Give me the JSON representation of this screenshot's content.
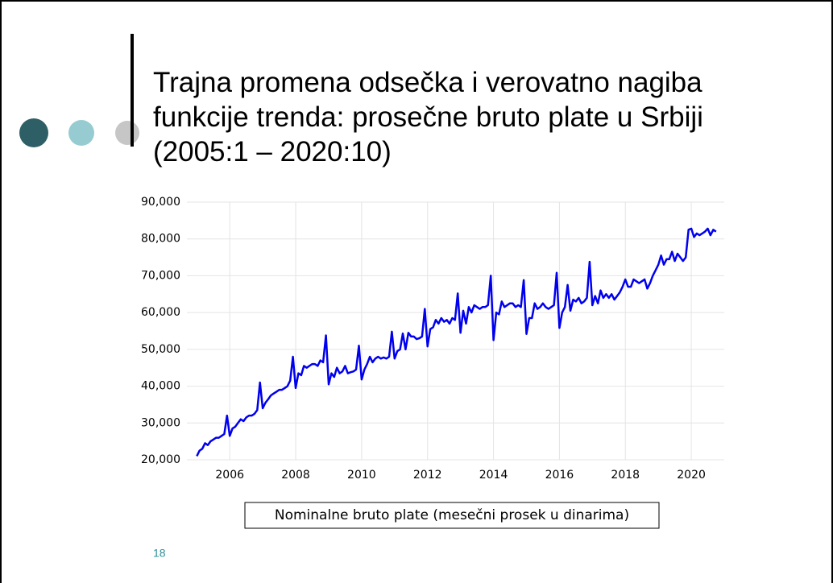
{
  "slide": {
    "title_lines": [
      "Trajna promena odsečka i verovatno nagiba",
      "funkcije trenda: prosečne bruto plate u Srbiji",
      "(2005:1 – 2020:10)"
    ],
    "page_number": "18"
  },
  "chart_data": {
    "type": "line",
    "caption": "Nominalne bruto plate (mesečni prosek u dinarima)",
    "xlim": [
      2004.7,
      2021.0
    ],
    "xticks": [
      2006,
      2008,
      2010,
      2012,
      2014,
      2016,
      2018,
      2020
    ],
    "ylim": [
      20000,
      90000
    ],
    "yticks": [
      {
        "value": 20000,
        "label": "20,000"
      },
      {
        "value": 30000,
        "label": "30,000"
      },
      {
        "value": 40000,
        "label": "40,000"
      },
      {
        "value": 50000,
        "label": "50,000"
      },
      {
        "value": 60000,
        "label": "60,000"
      },
      {
        "value": 70000,
        "label": "70,000"
      },
      {
        "value": 80000,
        "label": "80,000"
      },
      {
        "value": 90000,
        "label": "90,000"
      }
    ],
    "grid": true,
    "series": [
      {
        "color": "#0000ee",
        "x": [
          2005.0,
          2005.083,
          2005.167,
          2005.25,
          2005.333,
          2005.417,
          2005.5,
          2005.583,
          2005.667,
          2005.75,
          2005.833,
          2005.917,
          2006.0,
          2006.083,
          2006.167,
          2006.25,
          2006.333,
          2006.417,
          2006.5,
          2006.583,
          2006.667,
          2006.75,
          2006.833,
          2006.917,
          2007.0,
          2007.083,
          2007.167,
          2007.25,
          2007.333,
          2007.417,
          2007.5,
          2007.583,
          2007.667,
          2007.75,
          2007.833,
          2007.917,
          2008.0,
          2008.083,
          2008.167,
          2008.25,
          2008.333,
          2008.417,
          2008.5,
          2008.583,
          2008.667,
          2008.75,
          2008.833,
          2008.917,
          2009.0,
          2009.083,
          2009.167,
          2009.25,
          2009.333,
          2009.417,
          2009.5,
          2009.583,
          2009.667,
          2009.75,
          2009.833,
          2009.917,
          2010.0,
          2010.083,
          2010.167,
          2010.25,
          2010.333,
          2010.417,
          2010.5,
          2010.583,
          2010.667,
          2010.75,
          2010.833,
          2010.917,
          2011.0,
          2011.083,
          2011.167,
          2011.25,
          2011.333,
          2011.417,
          2011.5,
          2011.583,
          2011.667,
          2011.75,
          2011.833,
          2011.917,
          2012.0,
          2012.083,
          2012.167,
          2012.25,
          2012.333,
          2012.417,
          2012.5,
          2012.583,
          2012.667,
          2012.75,
          2012.833,
          2012.917,
          2013.0,
          2013.083,
          2013.167,
          2013.25,
          2013.333,
          2013.417,
          2013.5,
          2013.583,
          2013.667,
          2013.75,
          2013.833,
          2013.917,
          2014.0,
          2014.083,
          2014.167,
          2014.25,
          2014.333,
          2014.417,
          2014.5,
          2014.583,
          2014.667,
          2014.75,
          2014.833,
          2014.917,
          2015.0,
          2015.083,
          2015.167,
          2015.25,
          2015.333,
          2015.417,
          2015.5,
          2015.583,
          2015.667,
          2015.75,
          2015.833,
          2015.917,
          2016.0,
          2016.083,
          2016.167,
          2016.25,
          2016.333,
          2016.417,
          2016.5,
          2016.583,
          2016.667,
          2016.75,
          2016.833,
          2016.917,
          2017.0,
          2017.083,
          2017.167,
          2017.25,
          2017.333,
          2017.417,
          2017.5,
          2017.583,
          2017.667,
          2017.75,
          2017.833,
          2017.917,
          2018.0,
          2018.083,
          2018.167,
          2018.25,
          2018.333,
          2018.417,
          2018.5,
          2018.583,
          2018.667,
          2018.75,
          2018.833,
          2018.917,
          2019.0,
          2019.083,
          2019.167,
          2019.25,
          2019.333,
          2019.417,
          2019.5,
          2019.583,
          2019.667,
          2019.75,
          2019.833,
          2019.917,
          2020.0,
          2020.083,
          2020.167,
          2020.25,
          2020.333,
          2020.417,
          2020.5,
          2020.583,
          2020.667,
          2020.75
        ],
        "values": [
          21000,
          22500,
          23000,
          24500,
          24000,
          25000,
          25500,
          26000,
          26000,
          26500,
          27000,
          32000,
          26500,
          28500,
          29000,
          30000,
          31000,
          30500,
          31500,
          32000,
          32000,
          32500,
          33500,
          41000,
          34000,
          35500,
          36500,
          37500,
          38000,
          38500,
          39000,
          39000,
          39500,
          40000,
          41500,
          48000,
          39500,
          43500,
          43000,
          45500,
          45000,
          45500,
          46000,
          46000,
          45500,
          47000,
          46500,
          53800,
          40500,
          43500,
          42500,
          45000,
          43500,
          44000,
          45500,
          43500,
          43800,
          44000,
          44500,
          51000,
          41800,
          44500,
          46000,
          48000,
          46500,
          47500,
          48000,
          47500,
          47800,
          47500,
          48000,
          54800,
          47500,
          49500,
          50000,
          54300,
          50000,
          54500,
          53500,
          53500,
          52800,
          53000,
          53500,
          61000,
          50800,
          55500,
          56000,
          58000,
          57000,
          58500,
          57500,
          58000,
          57000,
          58500,
          58000,
          65200,
          54500,
          60500,
          57000,
          61500,
          60000,
          62000,
          61500,
          61000,
          61500,
          61500,
          62000,
          70000,
          52500,
          60000,
          59500,
          63000,
          61500,
          62000,
          62500,
          62500,
          61500,
          62000,
          61500,
          68800,
          54200,
          58500,
          58500,
          62500,
          61000,
          61500,
          62500,
          61500,
          61000,
          61500,
          62000,
          70800,
          55800,
          60000,
          61500,
          67500,
          60500,
          63500,
          63000,
          64000,
          62500,
          63000,
          64000,
          73800,
          62000,
          64500,
          62500,
          66000,
          64000,
          65000,
          64000,
          65000,
          63500,
          64500,
          65500,
          67000,
          69000,
          67000,
          67000,
          69000,
          68500,
          68000,
          68500,
          69000,
          66500,
          68000,
          70000,
          71500,
          73000,
          75500,
          73000,
          74500,
          74500,
          76500,
          74000,
          76000,
          75000,
          74000,
          75000,
          82500,
          82800,
          80500,
          81500,
          81000,
          81500,
          82000,
          82800,
          81000,
          82500,
          82000
        ]
      }
    ]
  }
}
